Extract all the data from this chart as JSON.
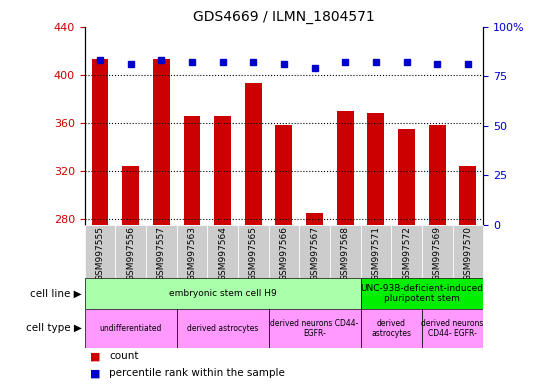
{
  "title": "GDS4669 / ILMN_1804571",
  "samples": [
    "GSM997555",
    "GSM997556",
    "GSM997557",
    "GSM997563",
    "GSM997564",
    "GSM997565",
    "GSM997566",
    "GSM997567",
    "GSM997568",
    "GSM997571",
    "GSM997572",
    "GSM997569",
    "GSM997570"
  ],
  "counts": [
    413,
    324,
    413,
    366,
    366,
    393,
    358,
    285,
    370,
    368,
    355,
    358,
    324
  ],
  "percentiles": [
    83,
    81,
    83,
    82,
    82,
    82,
    81,
    79,
    82,
    82,
    82,
    81,
    81
  ],
  "ylim_left": [
    275,
    440
  ],
  "ylim_right": [
    0,
    100
  ],
  "yticks_left": [
    280,
    320,
    360,
    400,
    440
  ],
  "yticks_right": [
    0,
    25,
    50,
    75,
    100
  ],
  "bar_color": "#cc0000",
  "dot_color": "#0000cc",
  "cell_line_groups": [
    {
      "label": "embryonic stem cell H9",
      "start": 0,
      "end": 8,
      "color": "#aaffaa"
    },
    {
      "label": "UNC-93B-deficient-induced\npluripotent stem",
      "start": 9,
      "end": 12,
      "color": "#00ee00"
    }
  ],
  "cell_type_groups": [
    {
      "label": "undifferentiated",
      "start": 0,
      "end": 2,
      "color": "#ff99ff"
    },
    {
      "label": "derived astrocytes",
      "start": 3,
      "end": 5,
      "color": "#ff99ff"
    },
    {
      "label": "derived neurons CD44-\nEGFR-",
      "start": 6,
      "end": 8,
      "color": "#ff99ff"
    },
    {
      "label": "derived\nastrocytes",
      "start": 9,
      "end": 10,
      "color": "#ff99ff"
    },
    {
      "label": "derived neurons\nCD44- EGFR-",
      "start": 11,
      "end": 12,
      "color": "#ff99ff"
    }
  ],
  "legend_count_color": "#cc0000",
  "legend_percentile_color": "#0000cc",
  "tick_label_color_left": "#cc0000",
  "tick_label_color_right": "#0000cc",
  "sample_bg_color": "#cccccc"
}
